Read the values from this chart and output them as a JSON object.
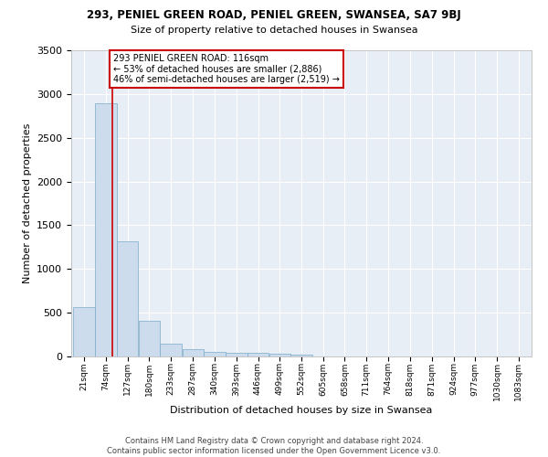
{
  "title1": "293, PENIEL GREEN ROAD, PENIEL GREEN, SWANSEA, SA7 9BJ",
  "title2": "Size of property relative to detached houses in Swansea",
  "xlabel": "Distribution of detached houses by size in Swansea",
  "ylabel": "Number of detached properties",
  "footer1": "Contains HM Land Registry data © Crown copyright and database right 2024.",
  "footer2": "Contains public sector information licensed under the Open Government Licence v3.0.",
  "bin_edges": [
    21,
    74,
    127,
    180,
    233,
    287,
    340,
    393,
    446,
    499,
    552,
    605,
    658,
    711,
    764,
    818,
    871,
    924,
    977,
    1030,
    1083
  ],
  "bar_heights": [
    560,
    2890,
    1320,
    410,
    145,
    80,
    55,
    45,
    38,
    30,
    22,
    0,
    0,
    0,
    0,
    0,
    0,
    0,
    0,
    0
  ],
  "bar_color": "#ccdcec",
  "bar_edgecolor": "#7aaac8",
  "property_size": 116,
  "vline_color": "#cc0000",
  "annotation_line1": "293 PENIEL GREEN ROAD: 116sqm",
  "annotation_line2": "← 53% of detached houses are smaller (2,886)",
  "annotation_line3": "46% of semi-detached houses are larger (2,519) →",
  "annotation_box_edgecolor": "#cc0000",
  "ylim": [
    0,
    3500
  ],
  "yticks": [
    0,
    500,
    1000,
    1500,
    2000,
    2500,
    3000,
    3500
  ],
  "background_color": "#e8eef6",
  "grid_color": "#ffffff"
}
